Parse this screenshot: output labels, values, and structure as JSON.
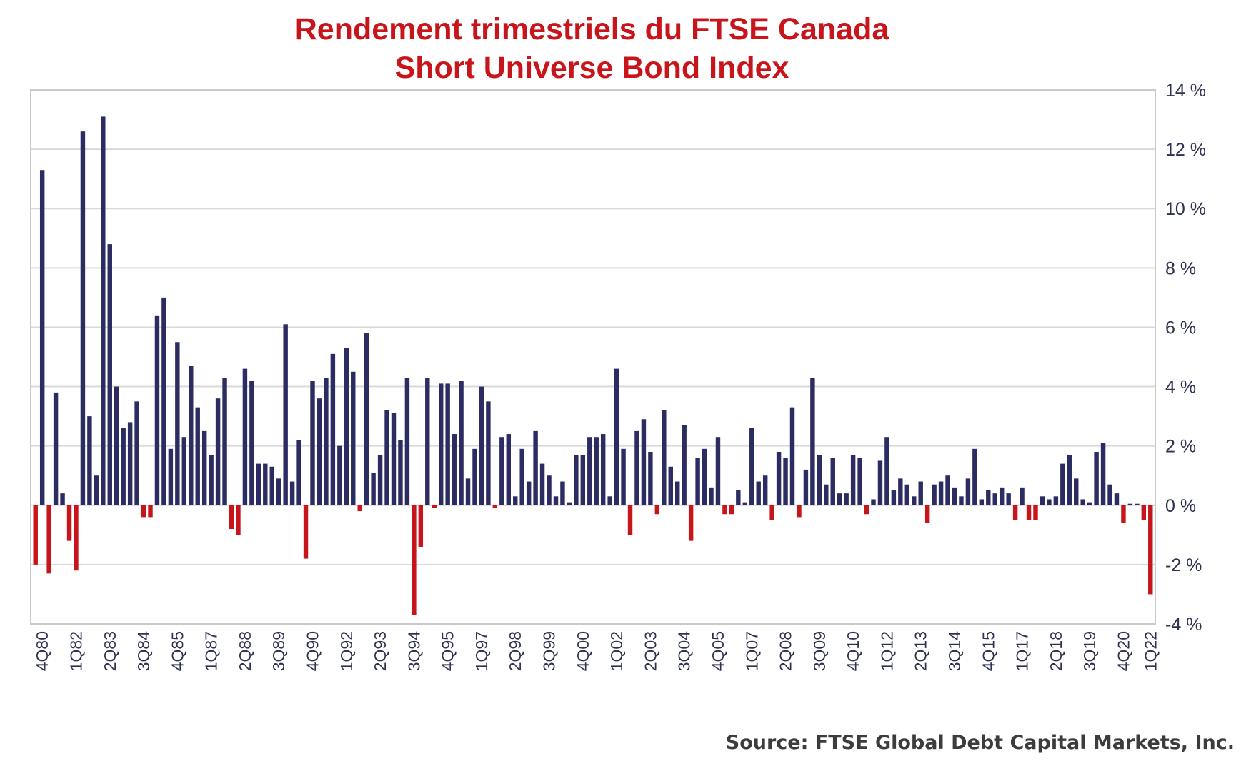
{
  "chart_data": {
    "type": "bar",
    "title": [
      "Rendement trimestriels du FTSE Canada",
      "Short Universe Bond Index"
    ],
    "xlabel": "",
    "ylabel": "",
    "ylim": [
      -4,
      14
    ],
    "yticks": [
      "14 %",
      "12 %",
      "10 %",
      "8 %",
      "6 %",
      "4 %",
      "2 %",
      "0 %",
      "-2 %",
      "-4 %"
    ],
    "ytick_values": [
      14,
      12,
      10,
      8,
      6,
      4,
      2,
      0,
      -2,
      -4
    ],
    "grid": true,
    "y_axis_side": "right",
    "x_tick_labels": [
      "4Q80",
      "1Q82",
      "2Q83",
      "3Q84",
      "4Q85",
      "1Q87",
      "2Q88",
      "3Q89",
      "4Q90",
      "1Q92",
      "2Q93",
      "3Q94",
      "4Q95",
      "1Q97",
      "2Q98",
      "3Q99",
      "4Q00",
      "1Q02",
      "2Q03",
      "3Q04",
      "4Q05",
      "1Q07",
      "2Q08",
      "3Q09",
      "4Q10",
      "1Q12",
      "2Q13",
      "3Q14",
      "4Q15",
      "1Q17",
      "2Q18",
      "3Q19",
      "4Q20",
      "1Q22"
    ],
    "first_category": "3Q80",
    "last_category": "1Q22",
    "colors": {
      "positive": "#2b2d62",
      "negative": "#c8151b",
      "grid": "#d9d9d9",
      "title": "#c8151b"
    },
    "values": [
      -2.0,
      11.3,
      -2.3,
      3.8,
      0.4,
      -1.2,
      -2.2,
      12.6,
      3.0,
      1.0,
      13.1,
      8.8,
      4.0,
      2.6,
      2.8,
      3.5,
      -0.4,
      -0.4,
      6.4,
      7.0,
      1.9,
      5.5,
      2.3,
      4.7,
      3.3,
      2.5,
      1.7,
      3.6,
      4.3,
      -0.8,
      -1.0,
      4.6,
      4.2,
      1.4,
      1.4,
      1.3,
      0.9,
      6.1,
      0.8,
      2.2,
      -1.8,
      4.2,
      3.6,
      4.3,
      5.1,
      2.0,
      5.3,
      4.5,
      -0.2,
      5.8,
      1.1,
      1.7,
      3.2,
      3.1,
      2.2,
      4.3,
      -3.7,
      -1.4,
      4.3,
      -0.1,
      4.1,
      4.1,
      2.4,
      4.2,
      0.9,
      1.9,
      4.0,
      3.5,
      -0.1,
      2.3,
      2.4,
      0.3,
      1.9,
      0.8,
      2.5,
      1.4,
      1.0,
      0.3,
      0.8,
      0.1,
      1.7,
      1.7,
      2.3,
      2.3,
      2.4,
      0.3,
      4.6,
      1.9,
      -1.0,
      2.5,
      2.9,
      1.8,
      -0.3,
      3.2,
      1.3,
      0.8,
      2.7,
      -1.2,
      1.6,
      1.9,
      0.6,
      2.3,
      -0.3,
      -0.3,
      0.5,
      0.1,
      2.6,
      0.8,
      1.0,
      -0.5,
      1.8,
      1.6,
      3.3,
      -0.4,
      1.2,
      4.3,
      1.7,
      0.7,
      1.6,
      0.4,
      0.4,
      1.7,
      1.6,
      -0.3,
      0.2,
      1.5,
      2.3,
      0.5,
      0.9,
      0.7,
      0.3,
      0.8,
      -0.6,
      0.7,
      0.8,
      1.0,
      0.6,
      0.3,
      0.9,
      1.9,
      0.2,
      0.5,
      0.4,
      0.6,
      0.4,
      -0.5,
      0.6,
      -0.5,
      -0.5,
      0.3,
      0.2,
      0.3,
      1.4,
      1.7,
      0.9,
      0.2,
      0.1,
      1.8,
      2.1,
      0.7,
      0.4,
      -0.6,
      0.05,
      0.05,
      -0.5,
      -3.0
    ]
  },
  "source": "Source: FTSE Global Debt Capital Markets, Inc."
}
